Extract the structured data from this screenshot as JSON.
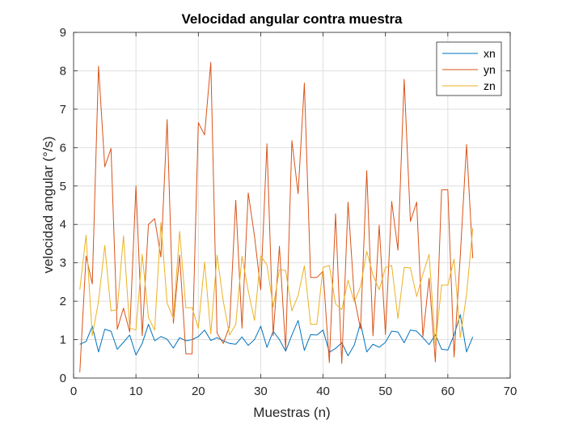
{
  "chart_data": {
    "type": "line",
    "title": "Velocidad angular contra muestra",
    "xlabel": "Muestras (n)",
    "ylabel": "velocidad angular (°/s)",
    "xlim": [
      0,
      70
    ],
    "ylim": [
      0,
      9
    ],
    "xticks": [
      0,
      10,
      20,
      30,
      40,
      50,
      60,
      70
    ],
    "yticks": [
      0,
      1,
      2,
      3,
      4,
      5,
      6,
      7,
      8,
      9
    ],
    "grid": true,
    "legend_position": "top-right",
    "x": [
      1,
      2,
      3,
      4,
      5,
      6,
      7,
      8,
      9,
      10,
      11,
      12,
      13,
      14,
      15,
      16,
      17,
      18,
      19,
      20,
      21,
      22,
      23,
      24,
      25,
      26,
      27,
      28,
      29,
      30,
      31,
      32,
      33,
      34,
      35,
      36,
      37,
      38,
      39,
      40,
      41,
      42,
      43,
      44,
      45,
      46,
      47,
      48,
      49,
      50,
      51,
      52,
      53,
      54,
      55,
      56,
      57,
      58,
      59,
      60,
      61,
      62,
      63,
      64
    ],
    "series": [
      {
        "name": "xn",
        "color": "#0072BD",
        "values": [
          0.88,
          0.95,
          1.35,
          0.68,
          1.27,
          1.22,
          0.75,
          0.93,
          1.12,
          0.6,
          0.9,
          1.4,
          0.97,
          1.08,
          1.01,
          0.78,
          1.05,
          0.97,
          1.0,
          1.08,
          1.25,
          0.98,
          1.05,
          0.97,
          0.9,
          0.88,
          1.07,
          0.85,
          1.0,
          1.35,
          0.8,
          1.22,
          1.0,
          0.7,
          1.12,
          1.5,
          0.72,
          1.13,
          1.12,
          1.25,
          0.67,
          0.77,
          0.92,
          0.58,
          0.86,
          1.43,
          0.68,
          0.88,
          0.8,
          0.93,
          1.22,
          1.2,
          0.92,
          1.25,
          1.22,
          1.05,
          0.87,
          1.13,
          0.75,
          0.73,
          1.12,
          1.65,
          0.68,
          1.07
        ]
      },
      {
        "name": "yn",
        "color": "#D95319",
        "values": [
          0.15,
          3.18,
          2.45,
          8.12,
          5.5,
          5.98,
          1.27,
          1.82,
          1.2,
          5.0,
          1.1,
          4.0,
          4.15,
          3.15,
          6.73,
          1.43,
          3.2,
          0.63,
          0.63,
          6.65,
          6.33,
          8.22,
          1.17,
          0.9,
          1.35,
          4.63,
          1.3,
          4.82,
          3.7,
          2.3,
          6.1,
          1.1,
          3.43,
          0.73,
          6.18,
          4.8,
          7.68,
          2.62,
          2.62,
          2.78,
          0.4,
          4.28,
          0.38,
          4.58,
          2.1,
          1.28,
          5.4,
          1.1,
          3.98,
          1.13,
          4.6,
          3.33,
          7.78,
          4.08,
          4.58,
          1.08,
          2.6,
          0.42,
          4.9,
          4.9,
          0.55,
          3.2,
          6.08,
          3.12
        ]
      },
      {
        "name": "zn",
        "color": "#EDB120",
        "values": [
          2.3,
          3.72,
          1.1,
          2.0,
          3.45,
          1.75,
          1.78,
          3.7,
          1.3,
          1.25,
          3.22,
          1.58,
          1.25,
          4.05,
          1.95,
          1.55,
          3.82,
          1.83,
          1.83,
          1.3,
          3.02,
          1.15,
          3.2,
          2.0,
          1.12,
          1.4,
          3.17,
          2.27,
          1.5,
          3.18,
          2.95,
          1.85,
          2.82,
          2.8,
          1.75,
          2.15,
          2.92,
          1.4,
          1.4,
          2.88,
          2.93,
          1.93,
          1.78,
          2.55,
          1.98,
          2.38,
          3.3,
          2.68,
          2.3,
          2.88,
          2.93,
          1.55,
          2.88,
          2.87,
          2.12,
          2.7,
          3.22,
          0.85,
          2.42,
          2.42,
          3.1,
          1.05,
          2.18,
          3.9
        ]
      }
    ]
  }
}
